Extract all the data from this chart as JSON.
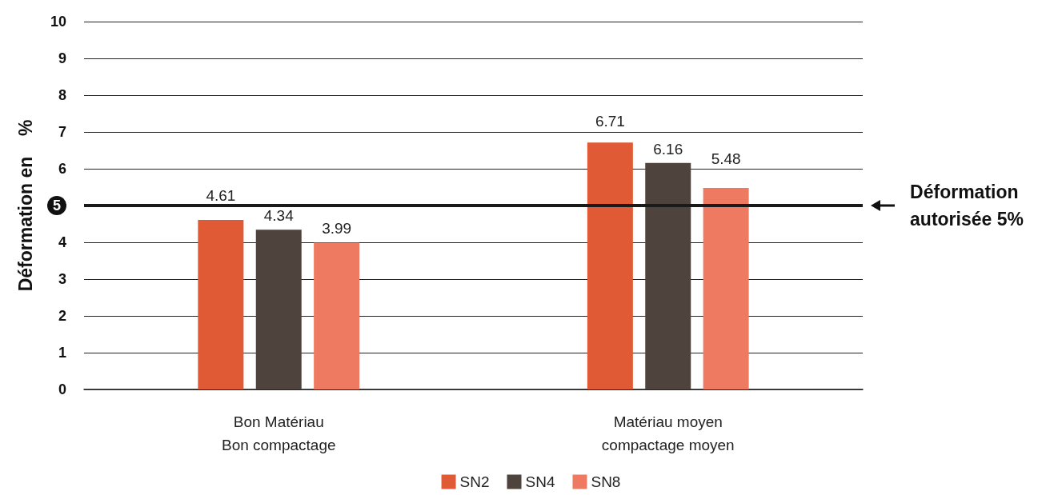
{
  "chart_data": {
    "type": "bar",
    "ylabel": "Déformation en    %",
    "categories": [
      "Bon Matériau\nBon compactage",
      "Matériau moyen\ncompactage moyen"
    ],
    "series": [
      {
        "name": "SN2",
        "color": "#e05a35",
        "values": [
          4.61,
          6.71
        ]
      },
      {
        "name": "SN4",
        "color": "#4f443d",
        "values": [
          4.34,
          6.16
        ]
      },
      {
        "name": "SN8",
        "color": "#ef7a62",
        "values": [
          3.99,
          5.48
        ]
      }
    ],
    "ylim": [
      0,
      10
    ],
    "yticks": [
      0,
      1,
      2,
      3,
      4,
      5,
      6,
      7,
      8,
      9,
      10
    ],
    "grid": "y",
    "legend": "bottom",
    "data_labels": true,
    "ref_lines": [
      {
        "axis": "y",
        "value": 5,
        "label": "Déformation autorisée 5%",
        "color": "#1a1a1a"
      }
    ]
  }
}
